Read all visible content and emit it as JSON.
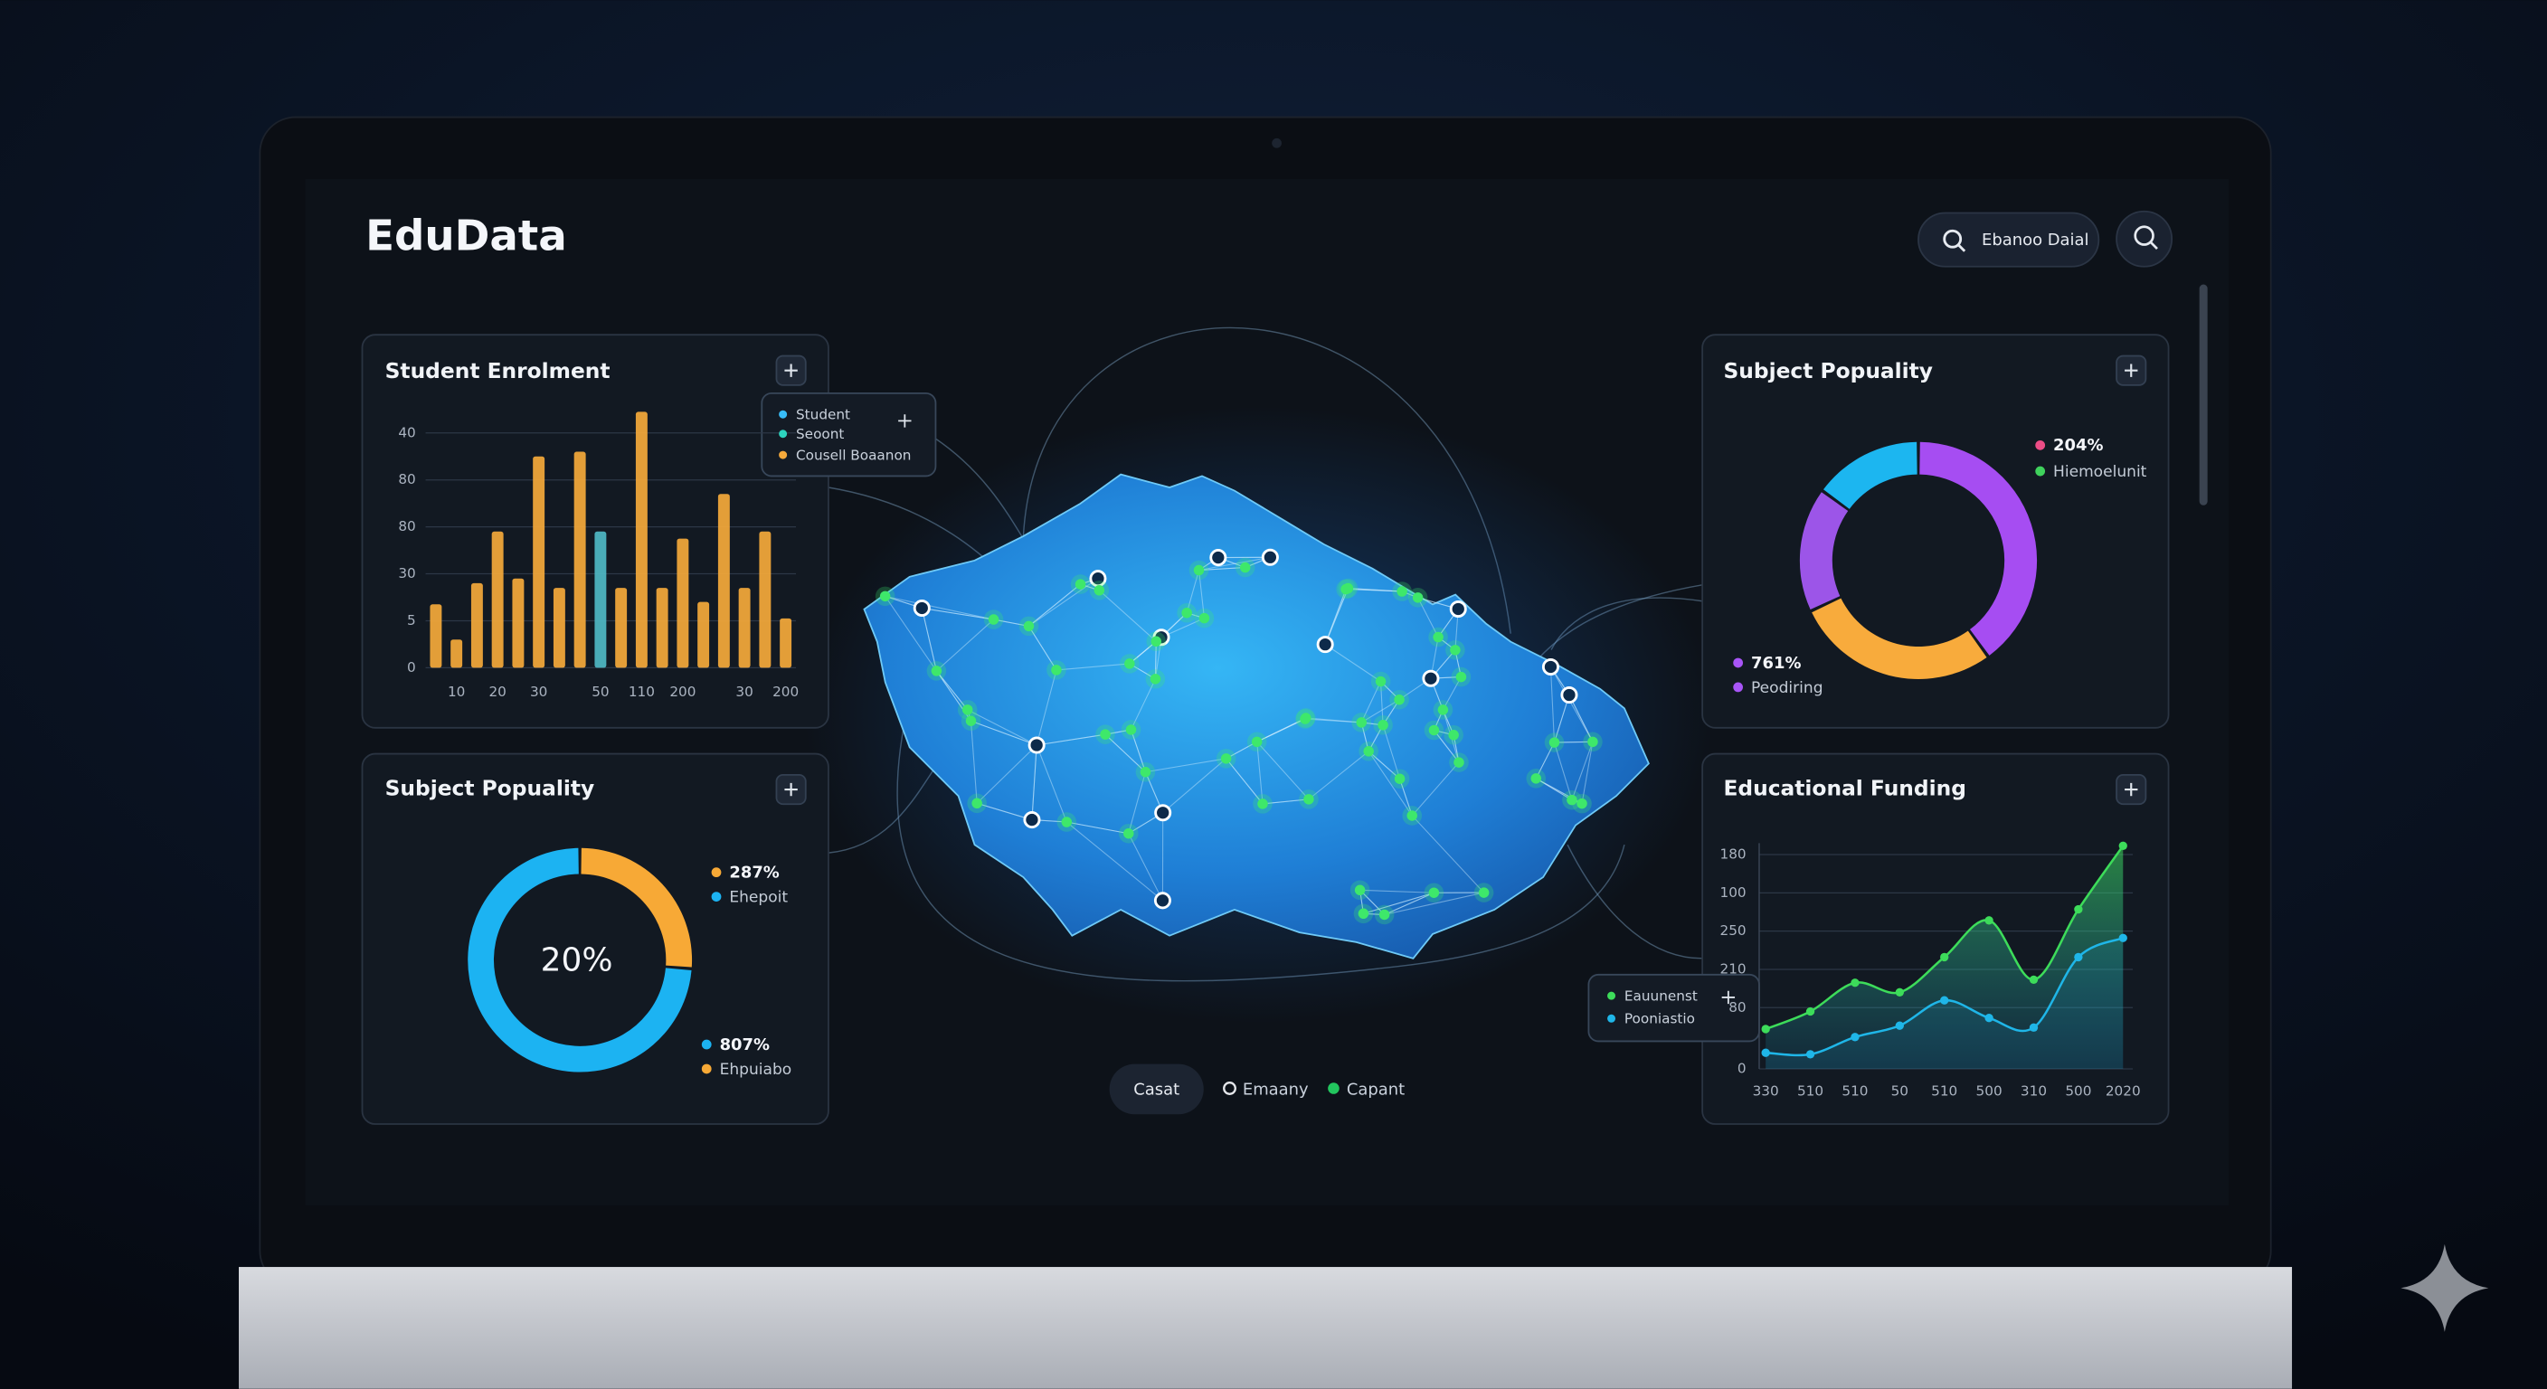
{
  "header": {
    "title": "EduData",
    "search": "Ebanoo Daial"
  },
  "chart_data": [
    {
      "type": "bar",
      "title": "Student Enrolment",
      "categories": [
        null,
        "10",
        null,
        "20",
        null,
        "30",
        null,
        null,
        "50",
        null,
        "110",
        null,
        "200",
        null,
        null,
        "30",
        null,
        "200"
      ],
      "values": [
        1.35,
        0.6,
        1.8,
        2.9,
        1.9,
        4.5,
        1.7,
        4.6,
        2.9,
        1.7,
        5.45,
        1.7,
        2.75,
        1.4,
        3.7,
        1.7,
        2.9,
        1.05
      ],
      "colors": [
        "#f5a93b",
        "#f5a93b",
        "#f5a93b",
        "#f5a93b",
        "#f5a93b",
        "#f5a93b",
        "#f5a93b",
        "#f5a93b",
        "#4fb8c6",
        "#f5a93b",
        "#f5a93b",
        "#f5a93b",
        "#f5a93b",
        "#f5a93b",
        "#f5a93b",
        "#f5a93b",
        "#f5a93b",
        "#f5a93b"
      ],
      "ylim": [
        0,
        5.5
      ],
      "yticks": [
        0,
        {
          "value": 1,
          "label": "5"
        },
        {
          "value": 2,
          "label": "30"
        },
        {
          "value": 3,
          "label": "80"
        },
        {
          "value": 4,
          "label": "80"
        },
        {
          "value": 5,
          "label": "40"
        }
      ],
      "grid": true,
      "popup": [
        {
          "name": "Student",
          "color": "#38bdf8"
        },
        {
          "name": "Seoont",
          "color": "#2dd4bf"
        },
        {
          "name": "Cousell Boaanon",
          "color": "#f5a93b"
        }
      ]
    },
    {
      "type": "donut",
      "title": "Subject Popuality",
      "center_label": "20%",
      "categories": [
        "Ehpuiabo",
        "Ehepoit"
      ],
      "values": [
        287,
        807
      ],
      "value_labels": [
        "287%",
        "807%"
      ],
      "colors": [
        "#f7a936",
        "#1cb3f2"
      ]
    },
    {
      "type": "donut",
      "title": "Subject Popuality",
      "values": [
        40,
        28,
        17,
        15
      ],
      "colors": [
        "#a64df2",
        "#f8ab3c",
        "#9c55e8",
        "#1cb6f0"
      ],
      "annotations": [
        {
          "text": "204%",
          "color": "#ec4d86"
        },
        {
          "text": "Hiemoelunit",
          "color": "#3fd15c"
        },
        {
          "text": "761%",
          "color": "#a855f7"
        },
        {
          "text": "Peodiring",
          "color": "#a855f7"
        }
      ]
    },
    {
      "type": "line",
      "title": "Educational Funding",
      "categories": [
        "330",
        "510",
        "510",
        "50",
        "510",
        "500",
        "310",
        "500",
        "2020"
      ],
      "series": [
        {
          "name": "Eauunenst",
          "color": "#3ddc5a",
          "values": [
            1.04,
            1.5,
            2.25,
            2.0,
            2.92,
            3.88,
            2.33,
            4.17,
            5.83
          ]
        },
        {
          "name": "Pooniastio",
          "color": "#1fb6e8",
          "values": [
            0.42,
            0.38,
            0.83,
            1.13,
            1.79,
            1.33,
            1.08,
            2.92,
            3.42
          ]
        }
      ],
      "ylim": [
        0,
        5.9
      ],
      "yticks": [
        0,
        {
          "value": 1.6,
          "label": "80"
        },
        {
          "value": 2.6,
          "label": "210"
        },
        {
          "value": 3.6,
          "label": "250"
        },
        {
          "value": 4.6,
          "label": "100"
        },
        {
          "value": 5.6,
          "label": "180"
        }
      ],
      "grid": true
    }
  ],
  "map": {
    "button": "Casat",
    "legend": [
      {
        "name": "Emaany",
        "color": "#e5e7eb"
      },
      {
        "name": "Capant",
        "color": "#22c55e"
      }
    ]
  }
}
